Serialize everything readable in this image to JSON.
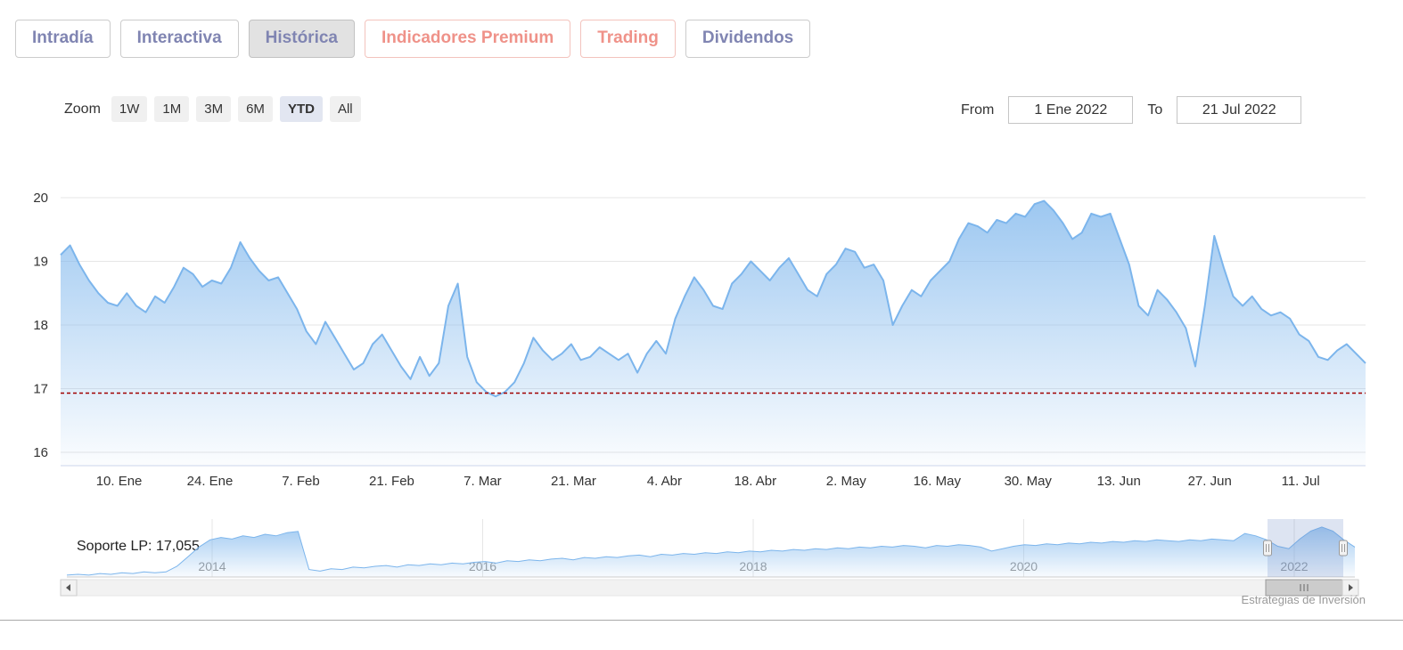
{
  "tabs": [
    {
      "label": "Intradía"
    },
    {
      "label": "Interactiva"
    },
    {
      "label": "Histórica"
    },
    {
      "label": "Indicadores Premium"
    },
    {
      "label": "Trading"
    },
    {
      "label": "Dividendos"
    }
  ],
  "active_tab": "Histórica",
  "toolbar": {
    "zoom_label": "Zoom",
    "zoom_buttons": [
      "1W",
      "1M",
      "3M",
      "6M",
      "YTD",
      "All"
    ],
    "active_zoom": "YTD",
    "from_label": "From",
    "from_value": "1 Ene 2022",
    "to_label": "To",
    "to_value": "21 Jul 2022"
  },
  "chart_data": {
    "type": "area",
    "title": "",
    "xlabel": "",
    "ylabel": "",
    "ylim": [
      15.8,
      20.3
    ],
    "y_ticks": [
      16,
      17,
      18,
      19,
      20
    ],
    "x_ticks": [
      "10. Ene",
      "24. Ene",
      "7. Feb",
      "21. Feb",
      "7. Mar",
      "21. Mar",
      "4. Abr",
      "18. Abr",
      "2. May",
      "16. May",
      "30. May",
      "13. Jun",
      "27. Jun",
      "11. Jul"
    ],
    "x_range": [
      "1 Ene 2022",
      "21 Jul 2022"
    ],
    "grid": true,
    "support_line": {
      "label": "Soporte LP: 17,055",
      "value": 17.055,
      "y_position": 16.93
    },
    "colors": {
      "line": "#7cb5ec",
      "support": "#a00000",
      "grid": "#e6e6e6",
      "axis": "#ccd6eb"
    },
    "values": [
      19.1,
      19.25,
      18.95,
      18.7,
      18.5,
      18.35,
      18.3,
      18.5,
      18.3,
      18.2,
      18.45,
      18.35,
      18.6,
      18.9,
      18.8,
      18.6,
      18.7,
      18.65,
      18.9,
      19.3,
      19.05,
      18.85,
      18.7,
      18.75,
      18.5,
      18.25,
      17.9,
      17.7,
      18.05,
      17.8,
      17.55,
      17.3,
      17.4,
      17.7,
      17.85,
      17.6,
      17.35,
      17.15,
      17.5,
      17.2,
      17.4,
      18.3,
      18.65,
      17.5,
      17.1,
      16.95,
      16.88,
      16.95,
      17.1,
      17.4,
      17.8,
      17.6,
      17.45,
      17.55,
      17.7,
      17.45,
      17.5,
      17.65,
      17.55,
      17.45,
      17.55,
      17.25,
      17.55,
      17.75,
      17.55,
      18.1,
      18.45,
      18.75,
      18.55,
      18.3,
      18.25,
      18.65,
      18.8,
      19.0,
      18.85,
      18.7,
      18.9,
      19.05,
      18.8,
      18.55,
      18.45,
      18.8,
      18.95,
      19.2,
      19.15,
      18.9,
      18.95,
      18.7,
      18.0,
      18.3,
      18.55,
      18.45,
      18.7,
      18.85,
      19.0,
      19.35,
      19.6,
      19.55,
      19.45,
      19.65,
      19.6,
      19.75,
      19.7,
      19.9,
      19.95,
      19.8,
      19.6,
      19.35,
      19.45,
      19.75,
      19.7,
      19.75,
      19.35,
      18.95,
      18.3,
      18.15,
      18.55,
      18.4,
      18.2,
      17.95,
      17.35,
      18.3,
      19.4,
      18.9,
      18.45,
      18.3,
      18.45,
      18.25,
      18.15,
      18.2,
      18.1,
      17.85,
      17.75,
      17.5,
      17.45,
      17.6,
      17.7,
      17.55,
      17.4
    ]
  },
  "navigator": {
    "type": "area",
    "year_ticks": [
      "2014",
      "2016",
      "2018",
      "2020",
      "2022"
    ],
    "selected_range": "2022 YTD",
    "values": [
      13.9,
      14.0,
      13.9,
      14.1,
      14.0,
      14.2,
      14.1,
      14.3,
      14.2,
      14.3,
      15.0,
      16.2,
      17.4,
      18.3,
      18.6,
      18.4,
      18.8,
      18.6,
      19.0,
      18.8,
      19.2,
      19.35,
      14.6,
      14.4,
      14.7,
      14.6,
      14.9,
      14.8,
      15.0,
      15.1,
      14.9,
      15.2,
      15.1,
      15.3,
      15.2,
      15.4,
      15.3,
      15.5,
      15.6,
      15.4,
      15.7,
      15.6,
      15.8,
      15.7,
      15.9,
      16.0,
      15.8,
      16.1,
      16.0,
      16.2,
      16.1,
      16.3,
      16.4,
      16.2,
      16.5,
      16.4,
      16.6,
      16.5,
      16.7,
      16.6,
      16.8,
      16.7,
      16.9,
      16.8,
      17.0,
      16.9,
      17.1,
      17.0,
      17.2,
      17.1,
      17.3,
      17.2,
      17.4,
      17.3,
      17.5,
      17.4,
      17.6,
      17.5,
      17.3,
      17.6,
      17.5,
      17.7,
      17.6,
      17.4,
      16.9,
      17.2,
      17.5,
      17.7,
      17.6,
      17.8,
      17.7,
      17.9,
      17.8,
      18.0,
      17.9,
      18.1,
      18.0,
      18.2,
      18.1,
      18.3,
      18.2,
      18.1,
      18.3,
      18.2,
      18.4,
      18.3,
      18.2,
      19.1,
      18.8,
      18.3,
      17.5,
      17.2,
      18.4,
      19.4,
      19.9,
      19.4,
      18.3,
      17.4
    ]
  },
  "credits": "Estrategias de Inversión"
}
